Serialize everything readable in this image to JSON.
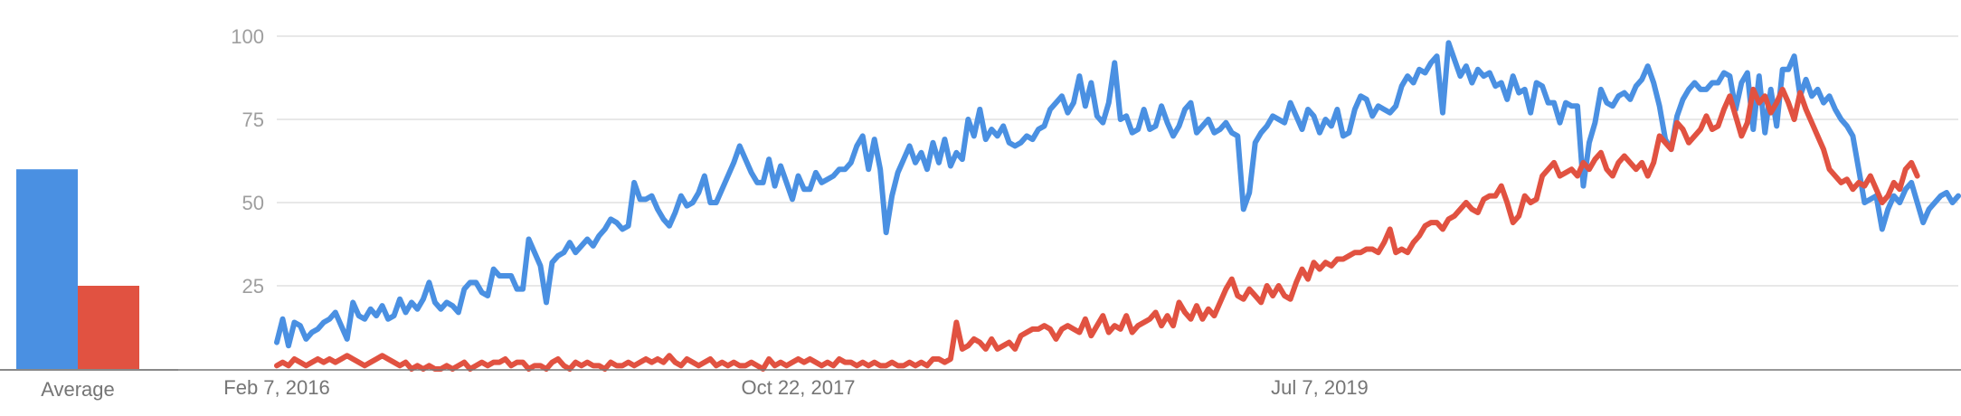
{
  "colors": {
    "series_a": "#4a90e2",
    "series_b": "#e15241",
    "grid": "#e0e0e0",
    "axis": "#777777",
    "tick_text": "#9e9e9e"
  },
  "average_panel": {
    "label": "Average",
    "values": [
      60,
      25
    ]
  },
  "chart_data": {
    "type": "line",
    "ylim": [
      0,
      100
    ],
    "yticks": [
      "25",
      "50",
      "75",
      "100"
    ],
    "ytick_values": [
      25,
      50,
      75,
      100
    ],
    "xtick_labels": [
      "Feb 7, 2016",
      "Oct 22, 2017",
      "Jul 7, 2019"
    ],
    "xtick_index": [
      0,
      89,
      178
    ],
    "grid": true,
    "series": [
      {
        "values": [
          8,
          15,
          7,
          14,
          13,
          9,
          11,
          12,
          14,
          15,
          17,
          13,
          9,
          20,
          16,
          15,
          18,
          16,
          19,
          15,
          16,
          21,
          17,
          20,
          18,
          21,
          26,
          20,
          18,
          20,
          19,
          17,
          24,
          26,
          26,
          23,
          22,
          30,
          28,
          28,
          28,
          24,
          24,
          39,
          35,
          31,
          20,
          32,
          34,
          35,
          38,
          35,
          37,
          39,
          37,
          40,
          42,
          45,
          44,
          42,
          43,
          56,
          51,
          51,
          52,
          48,
          45,
          43,
          47,
          52,
          49,
          50,
          53,
          58,
          50,
          50,
          54,
          58,
          62,
          67,
          63,
          59,
          56,
          56,
          63,
          55,
          61,
          56,
          51,
          58,
          54,
          54,
          59,
          56,
          57,
          58,
          60,
          60,
          62,
          67,
          70,
          60,
          69,
          60,
          41,
          52,
          59,
          63,
          67,
          62,
          65,
          60,
          68,
          62,
          69,
          61,
          65,
          63,
          75,
          70,
          78,
          69,
          72,
          70,
          73,
          68,
          67,
          68,
          70,
          69,
          72,
          73,
          78,
          80,
          82,
          77,
          80,
          88,
          79,
          86,
          76,
          74,
          80,
          92,
          75,
          76,
          71,
          72,
          78,
          72,
          73,
          79,
          74,
          70,
          73,
          78,
          80,
          71,
          73,
          75,
          71,
          72,
          74,
          71,
          70,
          48,
          53,
          68,
          71,
          73,
          76,
          75,
          74,
          80,
          76,
          72,
          78,
          76,
          71,
          75,
          73,
          78,
          70,
          71,
          78,
          82,
          81,
          76,
          79,
          78,
          77,
          79,
          85,
          88,
          86,
          90,
          89,
          92,
          94,
          77,
          98,
          93,
          88,
          91,
          86,
          90,
          88,
          89,
          85,
          86,
          81,
          88,
          83,
          84,
          77,
          86,
          85,
          80,
          80,
          74,
          80,
          79,
          79,
          55,
          68,
          74,
          84,
          80,
          79,
          82,
          83,
          81,
          85,
          87,
          91,
          86,
          79,
          69,
          66,
          76,
          81,
          84,
          86,
          84,
          84,
          86,
          86,
          89,
          88,
          78,
          86,
          89,
          72,
          88,
          71,
          84,
          73,
          90,
          90,
          94,
          82,
          87,
          82,
          84,
          80,
          82,
          78,
          75,
          73,
          70,
          60,
          50,
          51,
          52,
          42,
          48,
          52,
          50,
          54,
          56,
          50,
          44,
          48,
          50,
          52,
          53,
          50,
          52
        ]
      },
      {
        "values": [
          1,
          2,
          1,
          3,
          2,
          1,
          2,
          3,
          2,
          3,
          2,
          3,
          4,
          3,
          2,
          1,
          2,
          3,
          4,
          3,
          2,
          1,
          2,
          0,
          1,
          0,
          1,
          0,
          0,
          1,
          0,
          1,
          2,
          0,
          1,
          2,
          1,
          2,
          2,
          3,
          1,
          2,
          2,
          0,
          1,
          1,
          0,
          2,
          3,
          1,
          0,
          2,
          1,
          2,
          1,
          1,
          0,
          2,
          1,
          1,
          2,
          1,
          2,
          3,
          2,
          3,
          2,
          4,
          2,
          1,
          3,
          2,
          1,
          2,
          3,
          1,
          2,
          1,
          2,
          1,
          1,
          2,
          1,
          0,
          3,
          1,
          2,
          1,
          2,
          3,
          2,
          3,
          2,
          1,
          2,
          1,
          3,
          2,
          2,
          1,
          2,
          1,
          2,
          1,
          1,
          2,
          1,
          1,
          2,
          1,
          2,
          1,
          3,
          3,
          2,
          3,
          14,
          6,
          7,
          9,
          8,
          6,
          9,
          6,
          7,
          8,
          6,
          10,
          11,
          12,
          12,
          13,
          12,
          9,
          12,
          13,
          12,
          11,
          15,
          10,
          13,
          16,
          11,
          13,
          12,
          16,
          11,
          13,
          14,
          15,
          17,
          13,
          16,
          13,
          20,
          17,
          15,
          19,
          15,
          18,
          16,
          20,
          24,
          27,
          22,
          21,
          24,
          22,
          20,
          25,
          22,
          25,
          22,
          21,
          26,
          30,
          27,
          32,
          30,
          32,
          31,
          33,
          33,
          34,
          35,
          35,
          36,
          36,
          35,
          38,
          42,
          35,
          36,
          35,
          38,
          40,
          43,
          44,
          44,
          42,
          45,
          46,
          48,
          50,
          48,
          47,
          51,
          52,
          52,
          55,
          50,
          44,
          46,
          52,
          50,
          51,
          58,
          60,
          62,
          58,
          59,
          60,
          58,
          62,
          60,
          63,
          65,
          60,
          58,
          62,
          64,
          62,
          60,
          62,
          58,
          62,
          70,
          68,
          66,
          74,
          72,
          68,
          70,
          72,
          76,
          72,
          73,
          78,
          82,
          76,
          70,
          74,
          84,
          80,
          82,
          77,
          80,
          84,
          80,
          75,
          83,
          78,
          74,
          70,
          66,
          60,
          58,
          56,
          57,
          54,
          56,
          55,
          58,
          54,
          50,
          52,
          56,
          54,
          60,
          62,
          58
        ]
      }
    ]
  }
}
